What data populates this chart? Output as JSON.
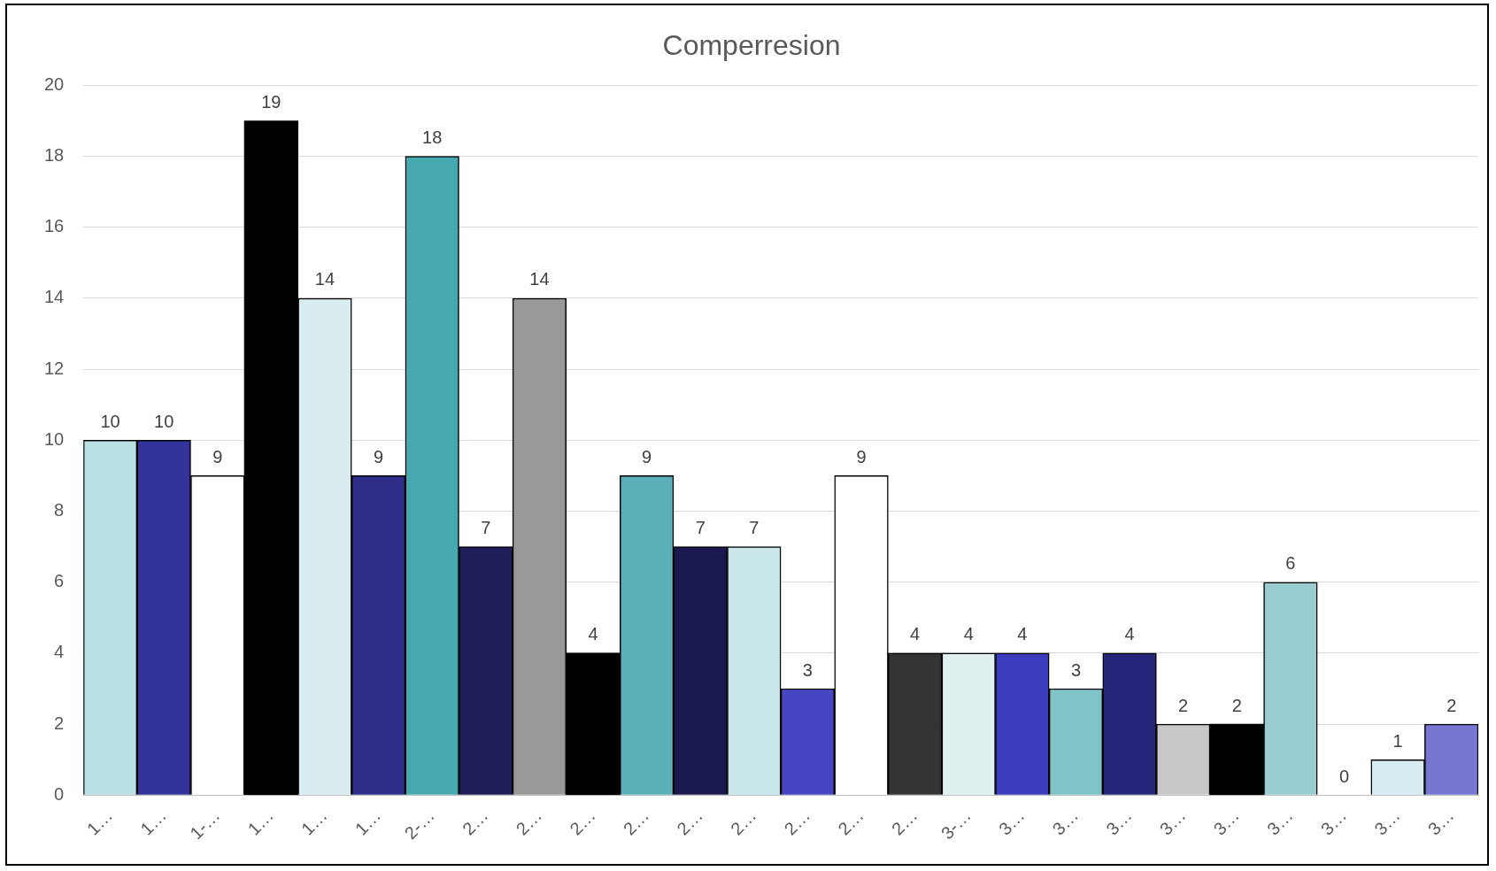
{
  "chart_data": {
    "type": "bar",
    "title": "Comperresion",
    "categories": [
      "1…",
      "1…",
      "1-…",
      "1…",
      "1…",
      "1…",
      "2-…",
      "2…",
      "2…",
      "2…",
      "2…",
      "2…",
      "2…",
      "2…",
      "2…",
      "2…",
      "3-…",
      "3…",
      "3…",
      "3…",
      "3…",
      "3…",
      "3…",
      "3…",
      "3…",
      "3…"
    ],
    "values": [
      10,
      10,
      9,
      19,
      14,
      9,
      18,
      7,
      14,
      4,
      9,
      7,
      7,
      3,
      9,
      4,
      4,
      4,
      3,
      4,
      2,
      2,
      6,
      0,
      1,
      2
    ],
    "colors": [
      "#b9e0e3",
      "#333399",
      "#ffffff",
      "#000000",
      "#d9edf0",
      "#2e2e8a",
      "#46a8b0",
      "#1e1e5a",
      "#999999",
      "#000000",
      "#5aafb8",
      "#1a1a50",
      "#c8e6ea",
      "#4646c3",
      "#ffffff",
      "#333333",
      "#dff0f0",
      "#3c3cbe",
      "#80c4ca",
      "#25257a",
      "#c8c8c8",
      "#000000",
      "#9acdd2",
      "#ffffff",
      "#d6ecf0",
      "#7777d3"
    ],
    "ylim": [
      0,
      20
    ],
    "yticks": [
      0,
      2,
      4,
      6,
      8,
      10,
      12,
      14,
      16,
      18,
      20
    ],
    "grid": "y",
    "data_labels": true
  }
}
